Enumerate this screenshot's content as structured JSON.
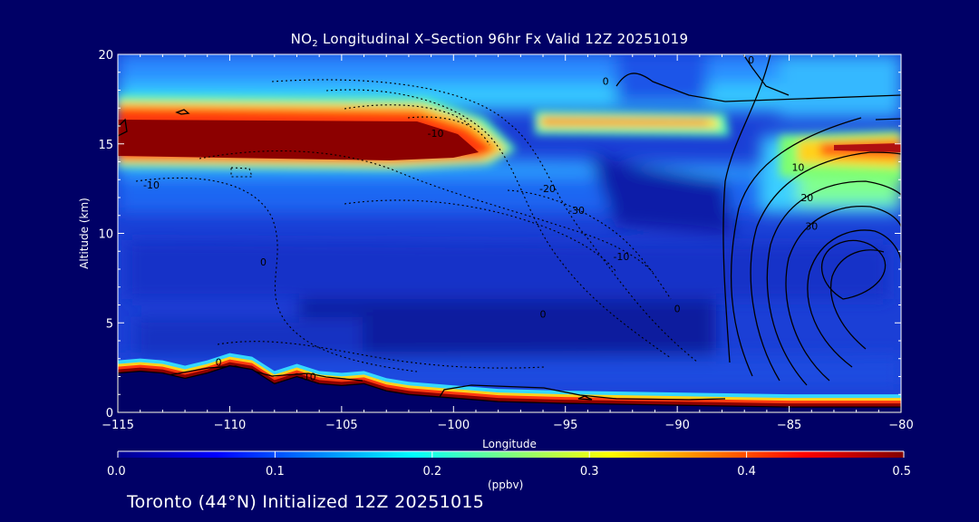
{
  "chart_data": {
    "type": "heatmap",
    "title_prefix": "NO",
    "title_sub": "2",
    "title_suffix": " Longitudinal X–Section 96hr  Fx Valid 12Z 20251019",
    "xlabel": "Longitude",
    "ylabel": "Altitude (km)",
    "xlim": [
      -115,
      -80
    ],
    "ylim": [
      0,
      20
    ],
    "x_ticks": [
      -115,
      -110,
      -105,
      -100,
      -95,
      -90,
      -85,
      -80
    ],
    "x_tick_labels": [
      "−115",
      "−110",
      "−105",
      "−100",
      "−95",
      "−90",
      "−85",
      "−80"
    ],
    "y_ticks": [
      0,
      5,
      10,
      15,
      20
    ],
    "y_tick_labels": [
      "0",
      "5",
      "10",
      "15",
      "20"
    ],
    "colorbar": {
      "min": 0.0,
      "max": 0.5,
      "unit": "(ppbv)",
      "ticks": [
        0.0,
        0.1,
        0.2,
        0.3,
        0.4,
        0.5
      ],
      "tick_labels": [
        "0.0",
        "0.1",
        "0.2",
        "0.3",
        "0.4",
        "0.5"
      ]
    },
    "terrain": [
      [
        -115,
        2.2
      ],
      [
        -114,
        2.3
      ],
      [
        -113,
        2.2
      ],
      [
        -112,
        1.9
      ],
      [
        -111,
        2.2
      ],
      [
        -110,
        2.6
      ],
      [
        -109,
        2.4
      ],
      [
        -108,
        1.6
      ],
      [
        -107,
        2.0
      ],
      [
        -106,
        1.6
      ],
      [
        -105,
        1.5
      ],
      [
        -104,
        1.6
      ],
      [
        -103,
        1.2
      ],
      [
        -102,
        1.0
      ],
      [
        -100,
        0.8
      ],
      [
        -98,
        0.6
      ],
      [
        -95,
        0.5
      ],
      [
        -90,
        0.4
      ],
      [
        -85,
        0.3
      ],
      [
        -80,
        0.3
      ]
    ],
    "contour_labels": [
      {
        "text": "-10",
        "x": -100.8,
        "y": 15.4
      },
      {
        "text": "-10",
        "x": -113.5,
        "y": 12.5
      },
      {
        "text": "-20",
        "x": -95.8,
        "y": 12.3
      },
      {
        "text": "-30",
        "x": -94.5,
        "y": 11.1
      },
      {
        "text": "-10",
        "x": -92.5,
        "y": 8.5
      },
      {
        "text": "0",
        "x": -108.5,
        "y": 8.2
      },
      {
        "text": "0",
        "x": -96.0,
        "y": 5.3
      },
      {
        "text": "0",
        "x": -90.0,
        "y": 5.6
      },
      {
        "text": "0",
        "x": -110.5,
        "y": 2.6
      },
      {
        "text": "-10",
        "x": -106.5,
        "y": 1.8
      },
      {
        "text": "0",
        "x": -93.2,
        "y": 18.3
      },
      {
        "text": "0",
        "x": -86.7,
        "y": 19.5
      },
      {
        "text": "10",
        "x": -84.6,
        "y": 13.5
      },
      {
        "text": "20",
        "x": -84.2,
        "y": 11.8
      },
      {
        "text": "30",
        "x": -84.0,
        "y": 10.2
      }
    ]
  },
  "footer": "Toronto (44°N) Initialized 12Z 20251015"
}
